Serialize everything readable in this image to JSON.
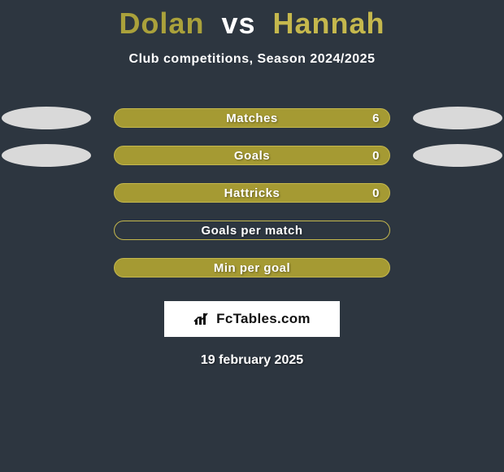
{
  "title": {
    "player1": "Dolan",
    "vs": "vs",
    "player2": "Hannah",
    "player1_color": "#aaa13b",
    "player2_color": "#c5b84d",
    "vs_color": "#ffffff"
  },
  "subtitle": "Club competitions, Season 2024/2025",
  "layout": {
    "background_color": "#2d3640",
    "bar_fill_color": "#a59a33",
    "bar_border_color": "#c5b84d",
    "ellipse_color": "#d9d9d9",
    "text_color": "#ffffff"
  },
  "stats": [
    {
      "label": "Matches",
      "value_right": "6",
      "filled": true,
      "show_left_ellipse": true,
      "show_right_ellipse": true
    },
    {
      "label": "Goals",
      "value_right": "0",
      "filled": true,
      "show_left_ellipse": true,
      "show_right_ellipse": true
    },
    {
      "label": "Hattricks",
      "value_right": "0",
      "filled": true,
      "show_left_ellipse": false,
      "show_right_ellipse": false
    },
    {
      "label": "Goals per match",
      "value_right": "",
      "filled": false,
      "show_left_ellipse": false,
      "show_right_ellipse": false
    },
    {
      "label": "Min per goal",
      "value_right": "",
      "filled": true,
      "show_left_ellipse": false,
      "show_right_ellipse": false
    }
  ],
  "brand": {
    "text": "FcTables.com",
    "icon_name": "bar-chart-icon"
  },
  "date": "19 february 2025"
}
